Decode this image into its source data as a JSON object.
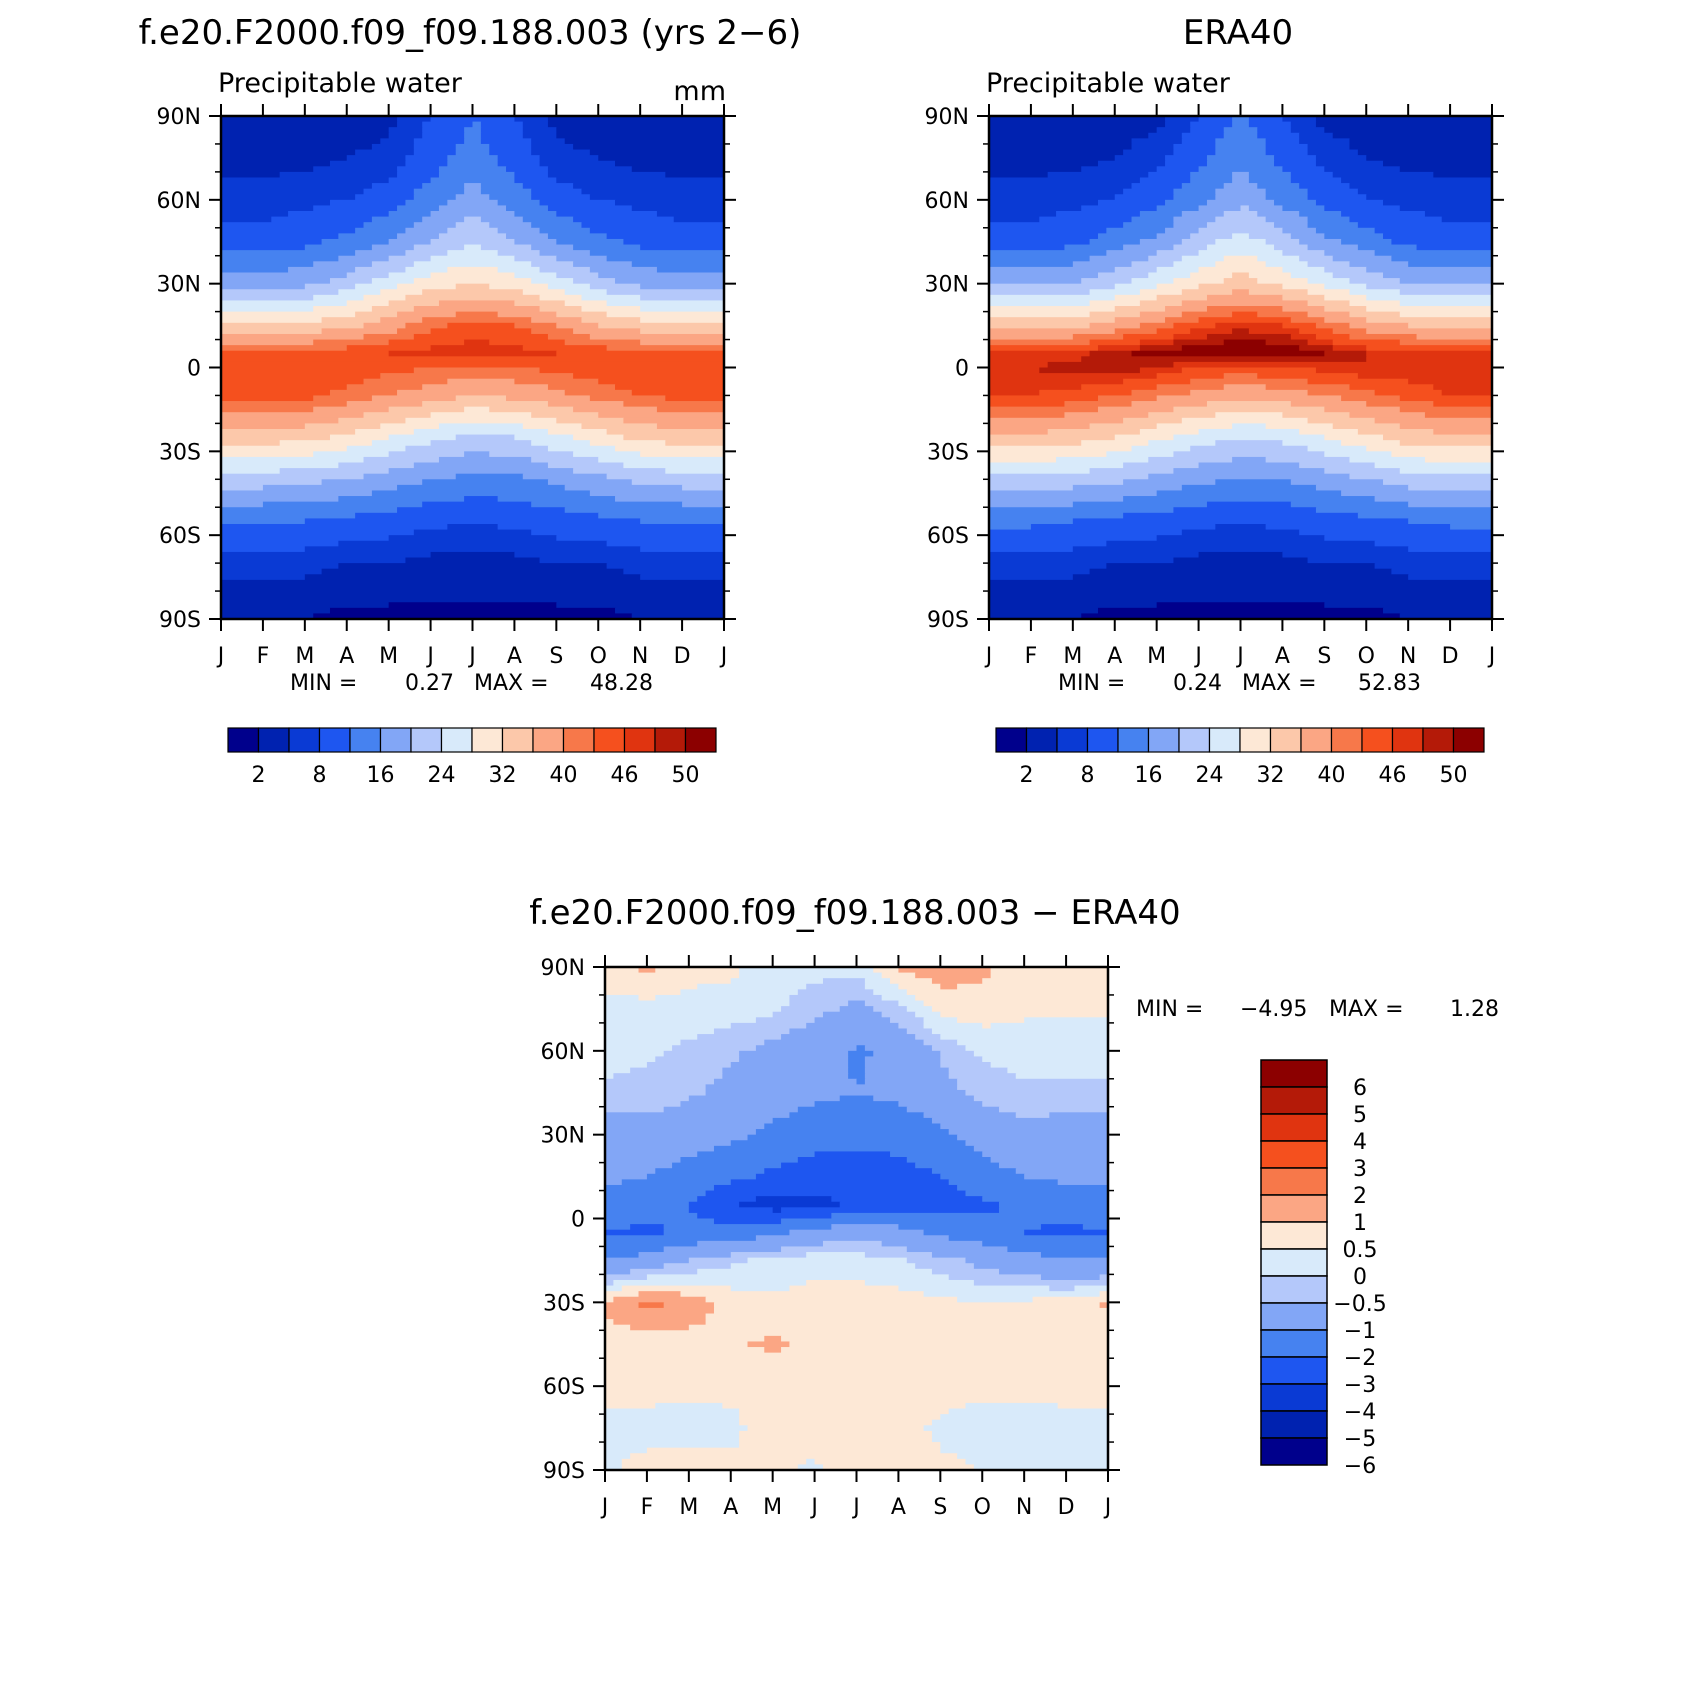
{
  "chart_data": [
    {
      "type": "heatmap",
      "title": "f.e20.F2000.f09_f09.188.003 (yrs 2−6)",
      "subtitle": "Precipitable water",
      "units": "mm",
      "xlabel": "",
      "ylabel": "",
      "x_ticks": [
        "J",
        "F",
        "M",
        "A",
        "M",
        "J",
        "J",
        "A",
        "S",
        "O",
        "N",
        "D",
        "J"
      ],
      "y_ticks": [
        "90N",
        "60N",
        "30N",
        "0",
        "30S",
        "60S",
        "90S"
      ],
      "y_range": [
        -90,
        90
      ],
      "min_label": "MIN =",
      "min_value": "0.27",
      "max_label": "MAX =",
      "max_value": "48.28",
      "colorbar_levels": [
        "2",
        "8",
        "16",
        "24",
        "32",
        "40",
        "46",
        "50"
      ],
      "bands": [
        {
          "lat": 90,
          "values": [
            3,
            3,
            3,
            3,
            4,
            8,
            12,
            8,
            4,
            3,
            3,
            3,
            3
          ]
        },
        {
          "lat": 75,
          "values": [
            4,
            4,
            4,
            5,
            6,
            10,
            14,
            10,
            6,
            5,
            4,
            4,
            4
          ]
        },
        {
          "lat": 60,
          "values": [
            6,
            6,
            7,
            8,
            10,
            14,
            18,
            14,
            10,
            8,
            7,
            6,
            6
          ]
        },
        {
          "lat": 45,
          "values": [
            10,
            10,
            11,
            13,
            16,
            20,
            24,
            20,
            16,
            13,
            11,
            10,
            10
          ]
        },
        {
          "lat": 30,
          "values": [
            18,
            18,
            19,
            22,
            26,
            30,
            32,
            30,
            26,
            22,
            19,
            18,
            18
          ]
        },
        {
          "lat": 15,
          "values": [
            32,
            32,
            33,
            35,
            38,
            42,
            44,
            43,
            40,
            36,
            34,
            32,
            32
          ]
        },
        {
          "lat": 5,
          "values": [
            44,
            44,
            44,
            45,
            46,
            47,
            48,
            47,
            46,
            45,
            44,
            44,
            44
          ]
        },
        {
          "lat": 0,
          "values": [
            46,
            46,
            46,
            45,
            44,
            43,
            42,
            43,
            44,
            45,
            46,
            46,
            46
          ]
        },
        {
          "lat": -10,
          "values": [
            44,
            44,
            44,
            42,
            40,
            38,
            36,
            37,
            39,
            41,
            43,
            44,
            44
          ]
        },
        {
          "lat": -25,
          "values": [
            34,
            34,
            33,
            31,
            28,
            25,
            23,
            24,
            27,
            30,
            33,
            34,
            34
          ]
        },
        {
          "lat": -40,
          "values": [
            22,
            22,
            21,
            20,
            18,
            16,
            15,
            15,
            17,
            19,
            21,
            22,
            22
          ]
        },
        {
          "lat": -55,
          "values": [
            12,
            12,
            12,
            11,
            10,
            9,
            8,
            9,
            10,
            11,
            12,
            12,
            12
          ]
        },
        {
          "lat": -70,
          "values": [
            6,
            6,
            6,
            5,
            5,
            4,
            4,
            4,
            5,
            5,
            6,
            6,
            6
          ]
        },
        {
          "lat": -90,
          "values": [
            2,
            2,
            2,
            1,
            1,
            1,
            1,
            1,
            1,
            1,
            2,
            2,
            2
          ]
        }
      ]
    },
    {
      "type": "heatmap",
      "title": "ERA40",
      "subtitle": "Precipitable water",
      "x_ticks": [
        "J",
        "F",
        "M",
        "A",
        "M",
        "J",
        "J",
        "A",
        "S",
        "O",
        "N",
        "D",
        "J"
      ],
      "y_ticks": [
        "90N",
        "60N",
        "30N",
        "0",
        "30S",
        "60S",
        "90S"
      ],
      "y_range": [
        -90,
        90
      ],
      "min_label": "MIN =",
      "min_value": "0.24",
      "max_label": "MAX =",
      "max_value": "52.83",
      "colorbar_levels": [
        "2",
        "8",
        "16",
        "24",
        "32",
        "40",
        "46",
        "50"
      ],
      "bands": [
        {
          "lat": 90,
          "values": [
            2,
            2,
            3,
            3,
            4,
            8,
            13,
            8,
            4,
            3,
            2,
            2,
            2
          ]
        },
        {
          "lat": 75,
          "values": [
            4,
            4,
            4,
            5,
            7,
            11,
            15,
            11,
            7,
            5,
            4,
            4,
            4
          ]
        },
        {
          "lat": 60,
          "values": [
            6,
            6,
            7,
            8,
            11,
            15,
            19,
            15,
            11,
            8,
            7,
            6,
            6
          ]
        },
        {
          "lat": 45,
          "values": [
            10,
            10,
            11,
            14,
            17,
            22,
            26,
            22,
            17,
            14,
            11,
            10,
            10
          ]
        },
        {
          "lat": 30,
          "values": [
            19,
            19,
            20,
            23,
            27,
            31,
            34,
            31,
            27,
            23,
            20,
            19,
            19
          ]
        },
        {
          "lat": 15,
          "values": [
            34,
            34,
            35,
            38,
            41,
            45,
            47,
            46,
            42,
            38,
            36,
            34,
            34
          ]
        },
        {
          "lat": 5,
          "values": [
            46,
            46,
            47,
            49,
            51,
            52,
            53,
            52,
            50,
            48,
            47,
            46,
            46
          ]
        },
        {
          "lat": 0,
          "values": [
            48,
            48,
            49,
            50,
            48,
            46,
            45,
            46,
            47,
            48,
            48,
            48,
            48
          ]
        },
        {
          "lat": -10,
          "values": [
            46,
            46,
            45,
            43,
            41,
            39,
            37,
            38,
            40,
            42,
            44,
            46,
            46
          ]
        },
        {
          "lat": -25,
          "values": [
            35,
            35,
            34,
            32,
            29,
            26,
            24,
            25,
            28,
            31,
            34,
            35,
            35
          ]
        },
        {
          "lat": -40,
          "values": [
            23,
            23,
            22,
            21,
            19,
            17,
            16,
            16,
            18,
            20,
            22,
            23,
            23
          ]
        },
        {
          "lat": -55,
          "values": [
            13,
            13,
            12,
            11,
            10,
            9,
            8,
            9,
            10,
            11,
            12,
            13,
            13
          ]
        },
        {
          "lat": -70,
          "values": [
            6,
            6,
            6,
            5,
            5,
            4,
            4,
            4,
            5,
            5,
            6,
            6,
            6
          ]
        },
        {
          "lat": -90,
          "values": [
            2,
            2,
            2,
            1,
            1,
            1,
            1,
            1,
            1,
            1,
            2,
            2,
            2
          ]
        }
      ]
    },
    {
      "type": "heatmap",
      "title": "f.e20.F2000.f09_f09.188.003 − ERA40",
      "x_ticks": [
        "J",
        "F",
        "M",
        "A",
        "M",
        "J",
        "J",
        "A",
        "S",
        "O",
        "N",
        "D",
        "J"
      ],
      "y_ticks": [
        "90N",
        "60N",
        "30N",
        "0",
        "30S",
        "60S",
        "90S"
      ],
      "y_range": [
        -90,
        90
      ],
      "min_label": "MIN =",
      "min_value": "−4.95",
      "max_label": "MAX =",
      "max_value": "1.28",
      "colorbar_levels": [
        "6",
        "5",
        "4",
        "3",
        "2",
        "1",
        "0.5",
        "0",
        "−0.5",
        "−1",
        "−2",
        "−3",
        "−4",
        "−5",
        "−6"
      ],
      "bands": [
        {
          "lat": 90,
          "values": [
            0.3,
            0.6,
            0.2,
            0.1,
            -0.2,
            -0.3,
            -0.3,
            0.6,
            0.8,
            0.6,
            0.2,
            0.2,
            0.2
          ]
        },
        {
          "lat": 75,
          "values": [
            -0.2,
            -0.2,
            -0.2,
            -0.2,
            -0.4,
            -0.8,
            -1.2,
            -0.6,
            0.2,
            0.3,
            0.1,
            0.1,
            0.1
          ]
        },
        {
          "lat": 60,
          "values": [
            -0.3,
            -0.4,
            -0.6,
            -0.9,
            -1.2,
            -1.6,
            -2.1,
            -1.8,
            -0.9,
            -0.4,
            -0.3,
            -0.3,
            -0.3
          ]
        },
        {
          "lat": 45,
          "values": [
            -0.6,
            -0.7,
            -0.9,
            -1.2,
            -1.5,
            -1.8,
            -2.0,
            -1.8,
            -1.3,
            -0.8,
            -0.6,
            -0.6,
            -0.6
          ]
        },
        {
          "lat": 30,
          "values": [
            -1.4,
            -1.3,
            -1.5,
            -1.8,
            -2.2,
            -2.6,
            -2.7,
            -2.6,
            -2.2,
            -1.6,
            -1.3,
            -1.4,
            -1.4
          ]
        },
        {
          "lat": 15,
          "values": [
            -1.8,
            -2.0,
            -2.4,
            -2.8,
            -3.2,
            -3.5,
            -3.6,
            -3.4,
            -3.0,
            -2.4,
            -2.0,
            -1.8,
            -1.8
          ]
        },
        {
          "lat": 5,
          "values": [
            -2.4,
            -2.6,
            -3.0,
            -3.8,
            -4.5,
            -4.3,
            -3.8,
            -3.6,
            -3.4,
            -3.2,
            -2.8,
            -2.6,
            -2.4
          ]
        },
        {
          "lat": -5,
          "values": [
            -3.0,
            -3.2,
            -2.8,
            -2.6,
            -2.2,
            -1.6,
            -1.2,
            -1.6,
            -2.2,
            -2.6,
            -3.0,
            -3.2,
            -3.0
          ]
        },
        {
          "lat": -15,
          "values": [
            -2.0,
            -1.6,
            -1.0,
            -0.6,
            -0.3,
            -0.2,
            -0.3,
            -0.4,
            -0.8,
            -1.2,
            -1.6,
            -2.0,
            -2.0
          ]
        },
        {
          "lat": -30,
          "values": [
            0.6,
            1.2,
            0.8,
            0.3,
            0.1,
            0.2,
            0.3,
            0.2,
            0.1,
            0.0,
            0.1,
            0.2,
            0.6
          ]
        },
        {
          "lat": -45,
          "values": [
            0.2,
            0.2,
            0.3,
            0.4,
            0.6,
            0.3,
            0.2,
            0.3,
            0.2,
            0.1,
            0.2,
            0.2,
            0.2
          ]
        },
        {
          "lat": -60,
          "values": [
            0.3,
            0.2,
            0.1,
            0.1,
            0.1,
            0.2,
            0.3,
            0.2,
            0.2,
            0.1,
            0.2,
            0.2,
            0.3
          ]
        },
        {
          "lat": -75,
          "values": [
            -0.2,
            -0.2,
            -0.2,
            -0.1,
            0.2,
            0.3,
            0.3,
            0.2,
            -0.1,
            -0.2,
            -0.3,
            -0.2,
            -0.2
          ]
        },
        {
          "lat": -90,
          "values": [
            -0.1,
            0.2,
            0.2,
            0.1,
            0.1,
            -0.1,
            0.2,
            0.2,
            0.1,
            0.0,
            -0.2,
            -0.1,
            -0.1
          ]
        }
      ]
    }
  ],
  "palettes": {
    "absolute": [
      "#00008c",
      "#0022b0",
      "#0a3ad4",
      "#1e56f0",
      "#4682f0",
      "#82a6f6",
      "#b4c8fa",
      "#d8eafa",
      "#fde8d6",
      "#fcc8aa",
      "#fba684",
      "#f7784a",
      "#f5501e",
      "#e03410",
      "#b41a08",
      "#8c0000"
    ],
    "anomaly": [
      "#00008c",
      "#0022b0",
      "#0a3ad4",
      "#1e56f0",
      "#4682f0",
      "#82a6f6",
      "#b4c8fa",
      "#d8eafa",
      "#fde8d6",
      "#fba684",
      "#f7784a",
      "#f5501e",
      "#e03410",
      "#b41a08",
      "#8c0000"
    ]
  }
}
